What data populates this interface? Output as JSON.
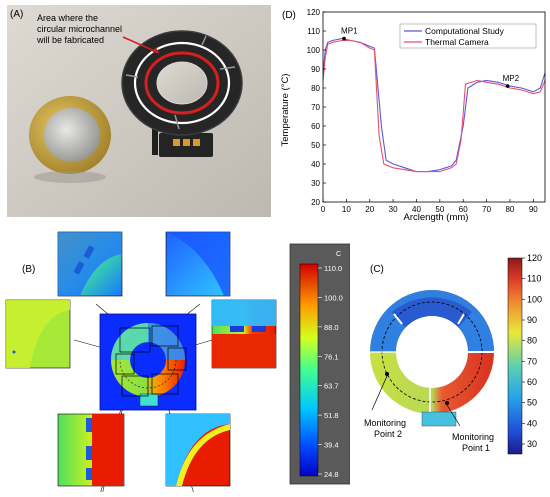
{
  "panels": {
    "a": {
      "label": "(A)",
      "annotation_lines": [
        "Area where the",
        "circular microchannel",
        "will be fabricated"
      ]
    },
    "b": {
      "label": "(B)",
      "colorbar": {
        "unit": "C",
        "ticks": [
          "110.0",
          "100.0",
          "88.0",
          "76.1",
          "63.7",
          "51.8",
          "39.4",
          "24.8"
        ]
      }
    },
    "c": {
      "label": "(C)",
      "monitoring_point_2": [
        "Monitoring",
        "Point 2"
      ],
      "monitoring_point_1": [
        "Monitoring",
        "Point 1"
      ],
      "colorbar_ticks": [
        "120",
        "110",
        "100",
        "90",
        "80",
        "70",
        "60",
        "50",
        "40",
        "30"
      ]
    },
    "d": {
      "label": "(D)"
    }
  },
  "colors": {
    "computational": "#5a5adc",
    "thermal": "#e8506e",
    "red_ring": "#d42020"
  },
  "chart_data": {
    "type": "line",
    "xlabel": "Arclength (mm)",
    "ylabel": "Temperature (°C)",
    "xlim": [
      0,
      95
    ],
    "ylim": [
      20,
      120
    ],
    "xticks": [
      "0",
      "10",
      "20",
      "30",
      "40",
      "50",
      "60",
      "70",
      "80",
      "90"
    ],
    "yticks": [
      "20",
      "30",
      "40",
      "50",
      "60",
      "70",
      "80",
      "90",
      "100",
      "110",
      "120"
    ],
    "legend": "top-right",
    "annotations": [
      {
        "text": "MP1",
        "x": 9,
        "y": 106
      },
      {
        "text": "MP2",
        "x": 79,
        "y": 81
      }
    ],
    "series": [
      {
        "name": "Computational Study",
        "x": [
          0,
          1,
          2,
          4,
          8,
          12,
          16,
          20,
          22,
          25,
          27,
          30,
          35,
          40,
          45,
          50,
          55,
          57,
          60,
          62,
          66,
          70,
          75,
          80,
          85,
          90,
          93,
          95
        ],
        "y": [
          88,
          100,
          104,
          105,
          106,
          105,
          104,
          102,
          101,
          60,
          42,
          40,
          38,
          36,
          36,
          37,
          39,
          42,
          60,
          80,
          83,
          84,
          83,
          81,
          80,
          78,
          80,
          88
        ]
      },
      {
        "name": "Thermal Camera",
        "x": [
          0,
          1,
          2,
          4,
          8,
          12,
          16,
          20,
          22,
          24,
          26,
          30,
          35,
          40,
          45,
          50,
          55,
          57,
          59,
          61,
          66,
          70,
          75,
          80,
          85,
          90,
          93,
          95
        ],
        "y": [
          84,
          96,
          103,
          104,
          105,
          105,
          104,
          101,
          100,
          55,
          40,
          38,
          37,
          36,
          36,
          36,
          38,
          40,
          52,
          82,
          84,
          83,
          82,
          80,
          79,
          77,
          78,
          84
        ]
      }
    ]
  }
}
